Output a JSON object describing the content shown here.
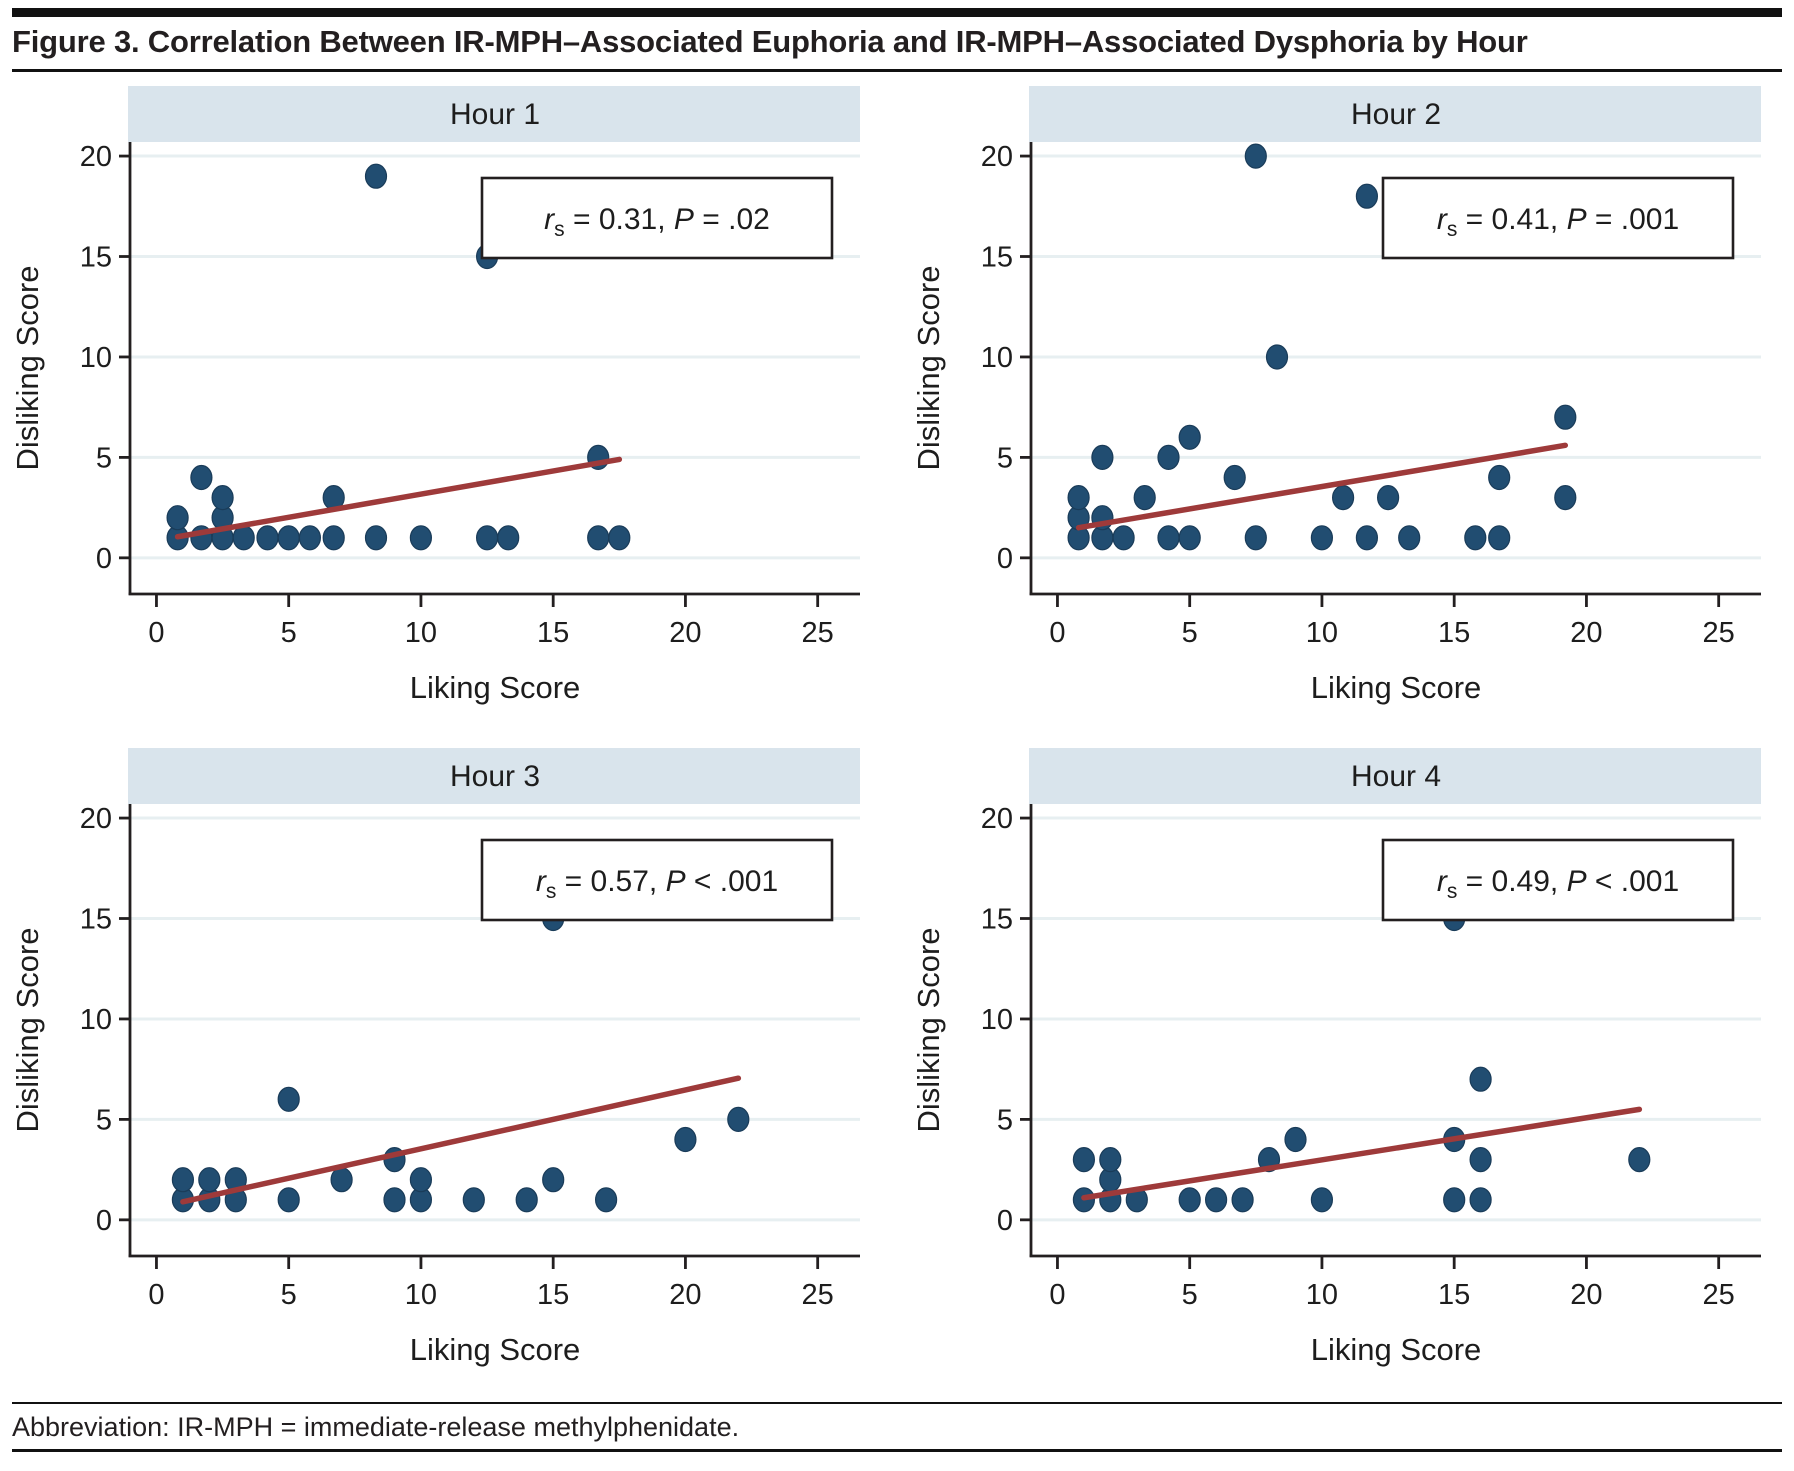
{
  "figure": {
    "title": "Figure 3. Correlation Between IR-MPH–Associated Euphoria and IR-MPH–Associated Dysphoria by Hour",
    "footnote": "Abbreviation: IR-MPH = immediate-release methylphenidate."
  },
  "colors": {
    "point_fill": "#214d71",
    "point_stroke": "#1a3c59",
    "trend_line": "#9e3a3a",
    "header_bg": "#d9e4ec",
    "gridline": "#e7eff1",
    "axis": "#231f20",
    "stats_box_border": "#231f20",
    "stats_box_bg": "#ffffff"
  },
  "chart_data": [
    {
      "type": "scatter",
      "title": "Hour 1",
      "xlabel": "Liking Score",
      "ylabel": "Disliking Score",
      "xlim": [
        -1,
        26.6
      ],
      "ylim": [
        -1.8,
        20.7
      ],
      "xticks": [
        0,
        5,
        10,
        15,
        20,
        25
      ],
      "yticks": [
        0,
        5,
        10,
        15,
        20
      ],
      "grid": true,
      "legend": "none",
      "annotation": {
        "rs_value": "0.31",
        "p_text": "= .02"
      },
      "points": [
        [
          0.8,
          1
        ],
        [
          1.7,
          1
        ],
        [
          2.5,
          1
        ],
        [
          3.3,
          1
        ],
        [
          4.2,
          1
        ],
        [
          5,
          1
        ],
        [
          5.8,
          1
        ],
        [
          6.7,
          1
        ],
        [
          8.3,
          1
        ],
        [
          10,
          1
        ],
        [
          12.5,
          1
        ],
        [
          13.3,
          1
        ],
        [
          16.7,
          1
        ],
        [
          17.5,
          1
        ],
        [
          0.8,
          2
        ],
        [
          2.5,
          2
        ],
        [
          2.5,
          3
        ],
        [
          1.7,
          4
        ],
        [
          6.7,
          3
        ],
        [
          16.7,
          5
        ],
        [
          12.5,
          15
        ],
        [
          8.3,
          19
        ]
      ],
      "trend": {
        "x1": 0.8,
        "y1": 1.05,
        "x2": 17.5,
        "y2": 4.9
      }
    },
    {
      "type": "scatter",
      "title": "Hour 2",
      "xlabel": "Liking Score",
      "ylabel": "Disliking Score",
      "xlim": [
        -1,
        26.6
      ],
      "ylim": [
        -1.8,
        20.7
      ],
      "xticks": [
        0,
        5,
        10,
        15,
        20,
        25
      ],
      "yticks": [
        0,
        5,
        10,
        15,
        20
      ],
      "grid": true,
      "legend": "none",
      "annotation": {
        "rs_value": "0.41",
        "p_text": "= .001"
      },
      "points": [
        [
          0.8,
          1
        ],
        [
          1.7,
          1
        ],
        [
          2.5,
          1
        ],
        [
          4.2,
          1
        ],
        [
          5,
          1
        ],
        [
          7.5,
          1
        ],
        [
          10,
          1
        ],
        [
          11.7,
          1
        ],
        [
          13.3,
          1
        ],
        [
          15.8,
          1
        ],
        [
          16.7,
          1
        ],
        [
          0.8,
          2
        ],
        [
          1.7,
          2
        ],
        [
          0.8,
          3
        ],
        [
          3.3,
          3
        ],
        [
          10.8,
          3
        ],
        [
          12.5,
          3
        ],
        [
          19.2,
          3
        ],
        [
          6.7,
          4
        ],
        [
          16.7,
          4
        ],
        [
          1.7,
          5
        ],
        [
          4.2,
          5
        ],
        [
          5,
          6
        ],
        [
          19.2,
          7
        ],
        [
          8.3,
          10
        ],
        [
          11.7,
          18
        ],
        [
          7.5,
          20
        ]
      ],
      "trend": {
        "x1": 0.8,
        "y1": 1.5,
        "x2": 19.2,
        "y2": 5.6
      }
    },
    {
      "type": "scatter",
      "title": "Hour 3",
      "xlabel": "Liking Score",
      "ylabel": "Disliking Score",
      "xlim": [
        -1,
        26.6
      ],
      "ylim": [
        -1.8,
        20.7
      ],
      "xticks": [
        0,
        5,
        10,
        15,
        20,
        25
      ],
      "yticks": [
        0,
        5,
        10,
        15,
        20
      ],
      "grid": true,
      "legend": "none",
      "annotation": {
        "rs_value": "0.57",
        "p_text": "< .001"
      },
      "points": [
        [
          1,
          1
        ],
        [
          2,
          1
        ],
        [
          3,
          1
        ],
        [
          5,
          1
        ],
        [
          9,
          1
        ],
        [
          10,
          1
        ],
        [
          12,
          1
        ],
        [
          14,
          1
        ],
        [
          17,
          1
        ],
        [
          1,
          2
        ],
        [
          2,
          2
        ],
        [
          3,
          2
        ],
        [
          7,
          2
        ],
        [
          10,
          2
        ],
        [
          15,
          2
        ],
        [
          9,
          3
        ],
        [
          20,
          4
        ],
        [
          22,
          5
        ],
        [
          5,
          6
        ],
        [
          15,
          15
        ]
      ],
      "trend": {
        "x1": 1,
        "y1": 0.9,
        "x2": 22,
        "y2": 7.05
      }
    },
    {
      "type": "scatter",
      "title": "Hour 4",
      "xlabel": "Liking Score",
      "ylabel": "Disliking Score",
      "xlim": [
        -1,
        26.6
      ],
      "ylim": [
        -1.8,
        20.7
      ],
      "xticks": [
        0,
        5,
        10,
        15,
        20,
        25
      ],
      "yticks": [
        0,
        5,
        10,
        15,
        20
      ],
      "grid": true,
      "legend": "none",
      "annotation": {
        "rs_value": "0.49",
        "p_text": "< .001"
      },
      "points": [
        [
          1,
          1
        ],
        [
          2,
          1
        ],
        [
          3,
          1
        ],
        [
          5,
          1
        ],
        [
          6,
          1
        ],
        [
          7,
          1
        ],
        [
          10,
          1
        ],
        [
          15,
          1
        ],
        [
          16,
          1
        ],
        [
          2,
          2
        ],
        [
          1,
          3
        ],
        [
          2,
          3
        ],
        [
          8,
          3
        ],
        [
          16,
          3
        ],
        [
          22,
          3
        ],
        [
          9,
          4
        ],
        [
          15,
          4
        ],
        [
          16,
          7
        ],
        [
          15,
          15
        ]
      ],
      "trend": {
        "x1": 1,
        "y1": 1.1,
        "x2": 22,
        "y2": 5.5
      }
    }
  ]
}
